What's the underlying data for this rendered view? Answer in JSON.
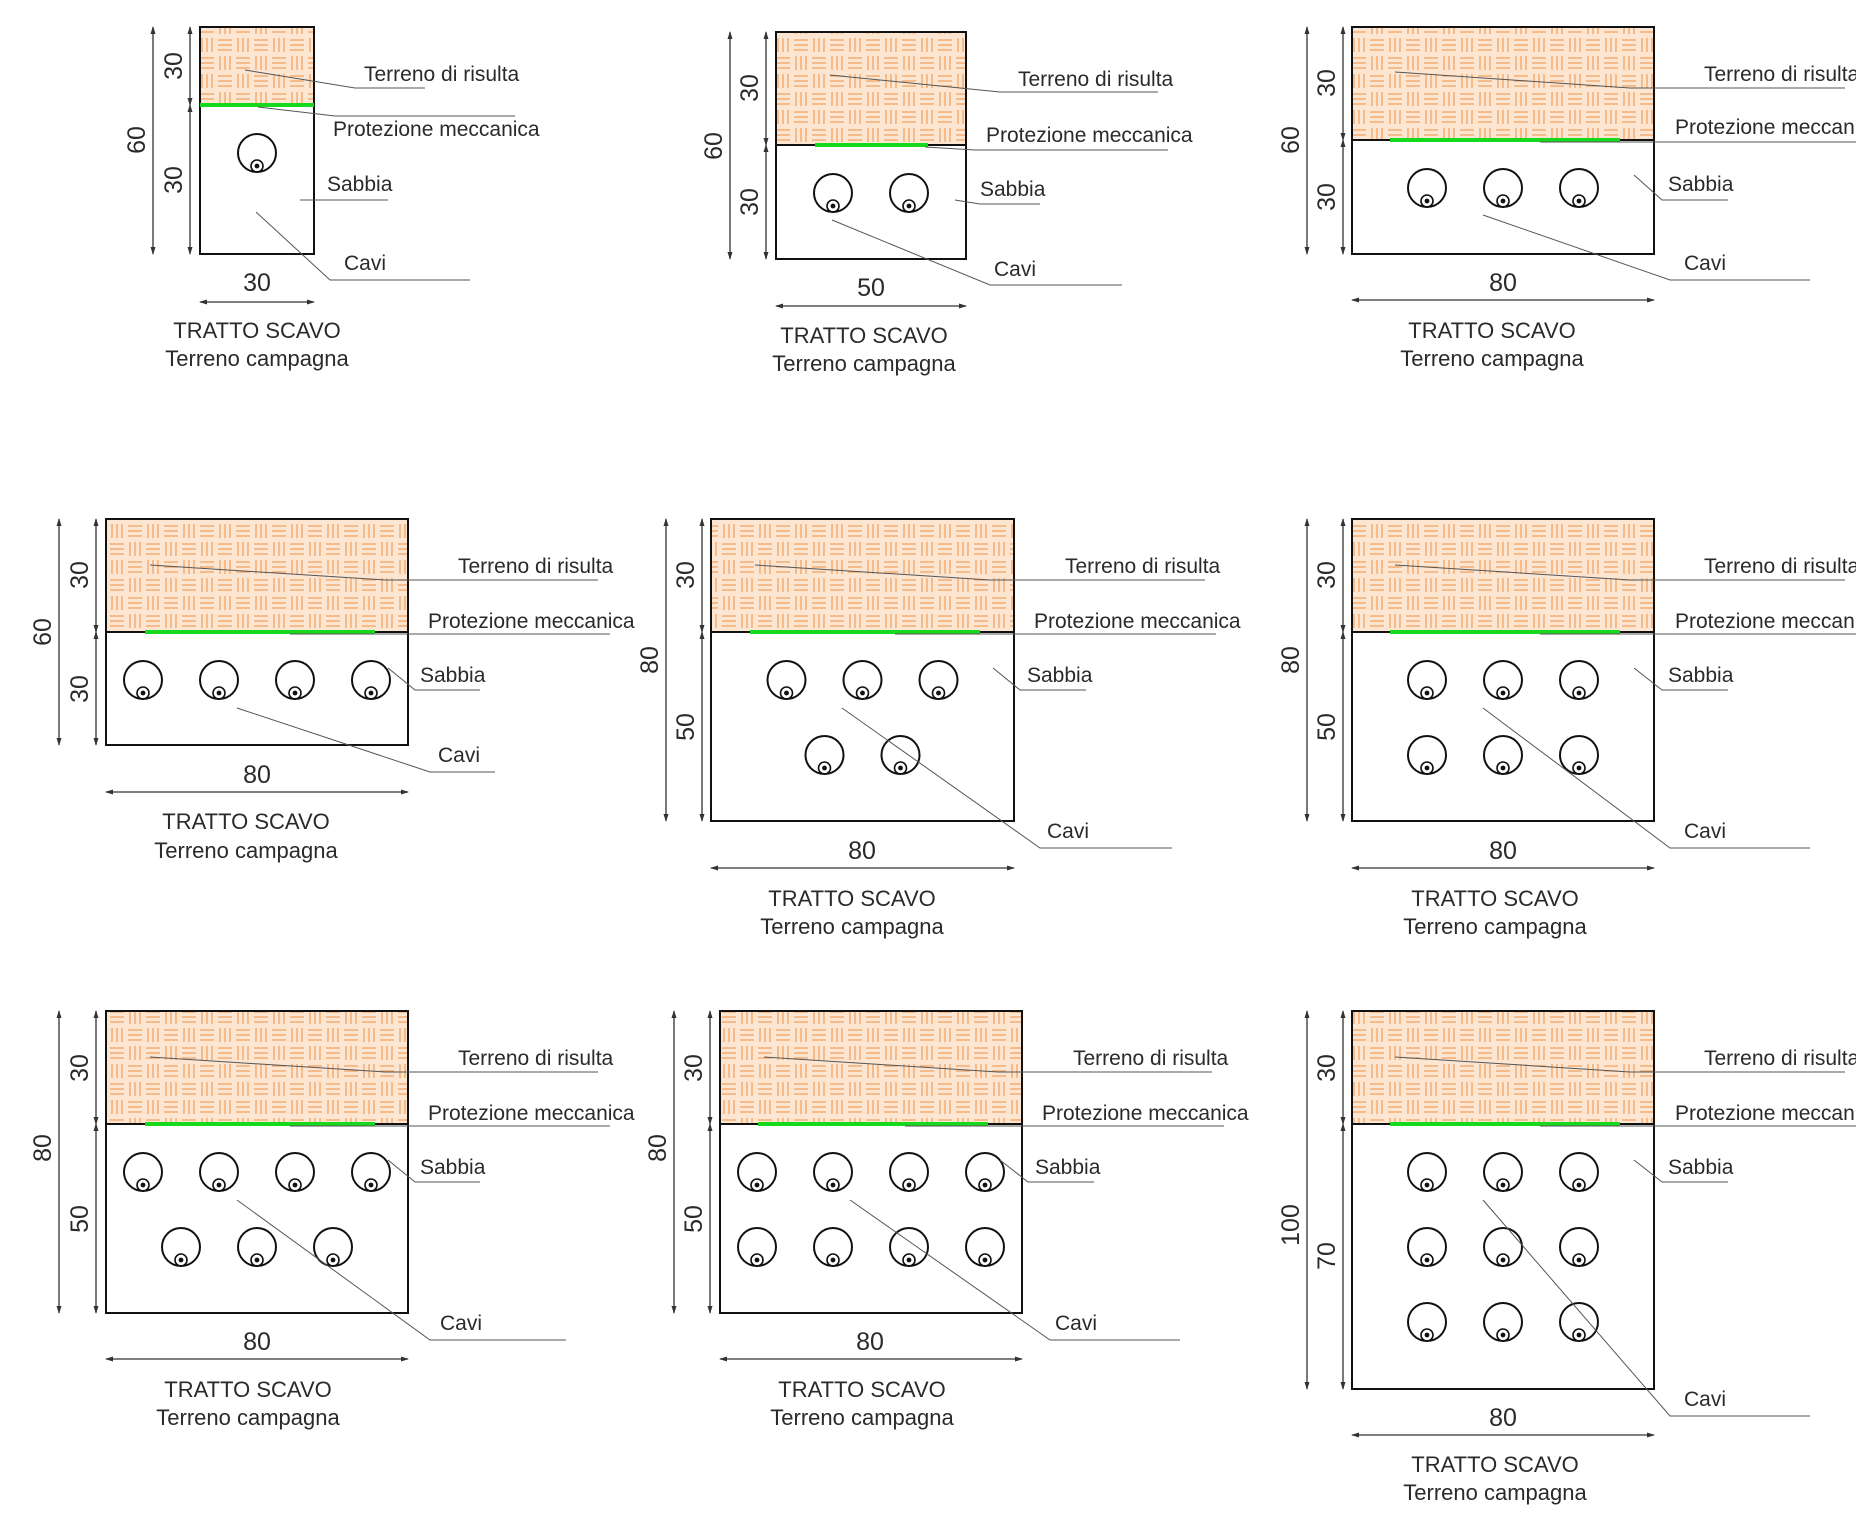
{
  "colors": {
    "fill_soil": "#fce6d2",
    "hatch_soil": "#f2a463",
    "protection": "#16d81c",
    "line": "#111111",
    "leader": "#555555",
    "text": "#2a2a2a"
  },
  "icons": {
    "cable": "circle-with-core-icon",
    "dimension": "double-arrow-dimension-icon"
  },
  "sections": [
    {
      "id": "1",
      "width": "30",
      "total": "60",
      "top": "30",
      "bottom": "30",
      "layer_top": "Terreno di risulta",
      "layer_protection": "Protezione meccanica",
      "layer_sand": "Sabbia",
      "cables_label": "Cavi",
      "cable_rows": [
        1
      ],
      "caption_line1": "TRATTO SCAVO",
      "caption_line2": "Terreno campagna"
    },
    {
      "id": "2",
      "width": "50",
      "total": "60",
      "top": "30",
      "bottom": "30",
      "layer_top": "Terreno di risulta",
      "layer_protection": "Protezione meccanica",
      "layer_sand": "Sabbia",
      "cables_label": "Cavi",
      "cable_rows": [
        2
      ],
      "caption_line1": "TRATTO SCAVO",
      "caption_line2": "Terreno campagna"
    },
    {
      "id": "3",
      "width": "80",
      "total": "60",
      "top": "30",
      "bottom": "30",
      "layer_top": "Terreno di risulta",
      "layer_protection": "Protezione meccanica",
      "layer_sand": "Sabbia",
      "cables_label": "Cavi",
      "cable_rows": [
        3
      ],
      "caption_line1": "TRATTO SCAVO",
      "caption_line2": "Terreno campagna"
    },
    {
      "id": "4",
      "width": "80",
      "total": "60",
      "top": "30",
      "bottom": "30",
      "layer_top": "Terreno di risulta",
      "layer_protection": "Protezione meccanica",
      "layer_sand": "Sabbia",
      "cables_label": "Cavi",
      "cable_rows": [
        4
      ],
      "caption_line1": "TRATTO SCAVO",
      "caption_line2": "Terreno campagna"
    },
    {
      "id": "5",
      "width": "80",
      "total": "80",
      "top": "30",
      "bottom": "50",
      "layer_top": "Terreno di risulta",
      "layer_protection": "Protezione meccanica",
      "layer_sand": "Sabbia",
      "cables_label": "Cavi",
      "cable_rows": [
        3,
        2
      ],
      "caption_line1": "TRATTO SCAVO",
      "caption_line2": "Terreno campagna"
    },
    {
      "id": "6",
      "width": "80",
      "total": "80",
      "top": "30",
      "bottom": "50",
      "layer_top": "Terreno di risulta",
      "layer_protection": "Protezione meccanica",
      "layer_sand": "Sabbia",
      "cables_label": "Cavi",
      "cable_rows": [
        3,
        3
      ],
      "caption_line1": "TRATTO SCAVO",
      "caption_line2": "Terreno campagna"
    },
    {
      "id": "7",
      "width": "80",
      "total": "80",
      "top": "30",
      "bottom": "50",
      "layer_top": "Terreno di risulta",
      "layer_protection": "Protezione meccanica",
      "layer_sand": "Sabbia",
      "cables_label": "Cavi",
      "cable_rows": [
        4,
        3
      ],
      "caption_line1": "TRATTO SCAVO",
      "caption_line2": "Terreno campagna"
    },
    {
      "id": "8",
      "width": "80",
      "total": "80",
      "top": "30",
      "bottom": "50",
      "layer_top": "Terreno di risulta",
      "layer_protection": "Protezione meccanica",
      "layer_sand": "Sabbia",
      "cables_label": "Cavi",
      "cable_rows": [
        4,
        4
      ],
      "caption_line1": "TRATTO SCAVO",
      "caption_line2": "Terreno campagna"
    },
    {
      "id": "9",
      "width": "80",
      "total": "100",
      "top": "30",
      "bottom": "70",
      "layer_top": "Terreno di risulta",
      "layer_protection": "Protezione meccanica",
      "layer_sand": "Sabbia",
      "cables_label": "Cavi",
      "cable_rows": [
        3,
        3,
        3
      ],
      "caption_line1": "TRATTO SCAVO",
      "caption_line2": "Terreno campagna"
    }
  ]
}
